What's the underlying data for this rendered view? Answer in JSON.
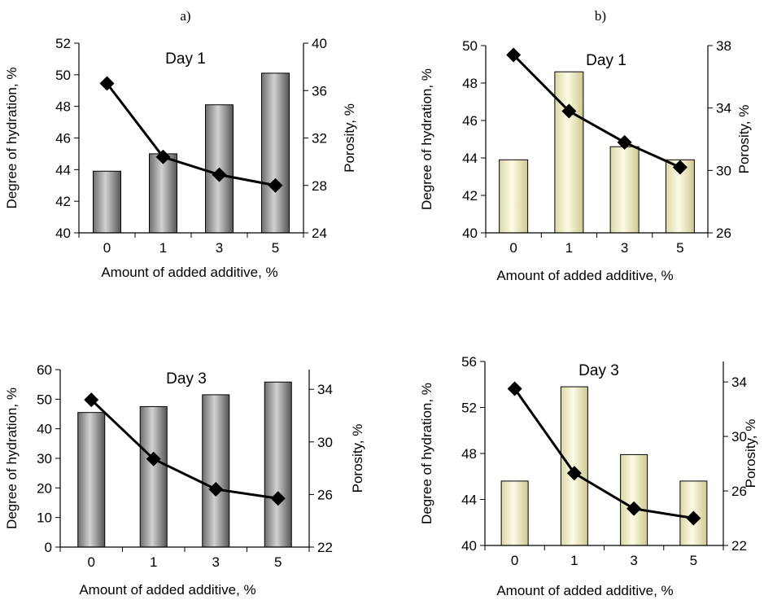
{
  "panel_labels": [
    "a)",
    "b)"
  ],
  "chart_data": [
    {
      "type": "bar",
      "panel": "a)",
      "title": "Day 1",
      "categories": [
        "0",
        "1",
        "3",
        "5"
      ],
      "xlabel": "Amount of added additive, %",
      "ylabel": "Degree of hydration, %",
      "y2label": "Porosity, %",
      "ylim": [
        40,
        52
      ],
      "yticks": [
        40,
        42,
        44,
        46,
        48,
        50,
        52
      ],
      "y2lim": [
        24,
        40
      ],
      "y2ticks": [
        24,
        28,
        32,
        36,
        40
      ],
      "bar_color": "#8c8c8c",
      "series": [
        {
          "axis": "left",
          "kind": "bar",
          "values": [
            43.9,
            45.0,
            48.1,
            50.1
          ]
        },
        {
          "axis": "right",
          "kind": "line",
          "marker": "diamond",
          "values": [
            36.6,
            30.4,
            28.9,
            28.0
          ]
        }
      ],
      "grid": false
    },
    {
      "type": "bar",
      "panel": "b)",
      "title": "Day 1",
      "categories": [
        "0",
        "1",
        "3",
        "5"
      ],
      "xlabel": "Amount of added additive, %",
      "ylabel": "Degree of hydration, %",
      "y2label": "Porosity, %",
      "ylim": [
        40,
        50
      ],
      "yticks": [
        40,
        42,
        44,
        46,
        48,
        50
      ],
      "y2lim": [
        26,
        38
      ],
      "y2ticks": [
        26,
        30,
        34,
        38
      ],
      "bar_color": "#f4f0c2",
      "series": [
        {
          "axis": "left",
          "kind": "bar",
          "values": [
            43.9,
            48.6,
            44.6,
            43.9
          ]
        },
        {
          "axis": "right",
          "kind": "line",
          "marker": "diamond",
          "values": [
            37.4,
            33.8,
            31.8,
            30.2
          ]
        }
      ],
      "grid": false
    },
    {
      "type": "bar",
      "panel": "a)",
      "title": "Day 3",
      "categories": [
        "0",
        "1",
        "3",
        "5"
      ],
      "xlabel": "Amount of added additive, %",
      "ylabel": "Degree of hydration, %",
      "y2label": "Porosity, %",
      "ylim": [
        0,
        60
      ],
      "yticks": [
        0,
        10,
        20,
        30,
        40,
        50,
        60
      ],
      "y2lim": [
        22,
        35.5
      ],
      "y2ticks": [
        22,
        26,
        30,
        34
      ],
      "bar_color": "#8c8c8c",
      "series": [
        {
          "axis": "left",
          "kind": "bar",
          "values": [
            45.5,
            47.5,
            51.5,
            55.8
          ]
        },
        {
          "axis": "right",
          "kind": "line",
          "marker": "diamond",
          "values": [
            33.2,
            28.7,
            26.4,
            25.7
          ]
        }
      ],
      "grid": false
    },
    {
      "type": "bar",
      "panel": "b)",
      "title": "Day 3",
      "categories": [
        "0",
        "1",
        "3",
        "5"
      ],
      "xlabel": "Amount of added additive, %",
      "ylabel": "Degree of hydration, %",
      "y2label": "Porosity, %",
      "ylim": [
        40,
        56
      ],
      "yticks": [
        40,
        44,
        48,
        52,
        56
      ],
      "y2lim": [
        22,
        35.5
      ],
      "y2ticks": [
        22,
        26,
        30,
        34
      ],
      "bar_color": "#f4f0c2",
      "series": [
        {
          "axis": "left",
          "kind": "bar",
          "values": [
            45.6,
            53.8,
            47.9,
            45.6
          ]
        },
        {
          "axis": "right",
          "kind": "line",
          "marker": "diamond",
          "values": [
            33.5,
            27.3,
            24.7,
            24.0
          ]
        }
      ],
      "grid": false
    }
  ]
}
